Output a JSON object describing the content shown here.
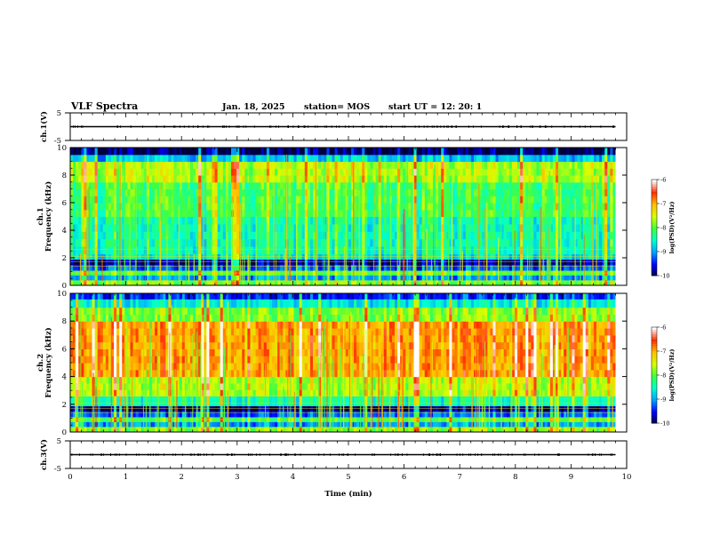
{
  "header": {
    "title": "VLF Spectra",
    "date": "Jan. 18, 2025",
    "station": "station= MOS",
    "start": "start  UT =   12: 20: 1"
  },
  "chart_data": [
    {
      "type": "line",
      "panel": "ch1-waveform",
      "ylabel": "ch.1(V)",
      "ylim": [
        -5,
        5
      ],
      "yticks": [
        "5",
        "-5"
      ],
      "xlim": [
        0,
        10
      ],
      "series": [
        {
          "x": [
            0,
            9.8
          ],
          "values": [
            0,
            0
          ]
        }
      ]
    },
    {
      "type": "heatmap",
      "panel": "ch1-spectrogram",
      "ylabel": "ch.1\nFrequency (kHz)",
      "xlim": [
        0,
        10
      ],
      "data_xmax": 9.8,
      "ylim": [
        0,
        10
      ],
      "yticks": [
        "0",
        "2",
        "4",
        "6",
        "8",
        "10"
      ],
      "bands": [
        {
          "f0": 0,
          "f1": 0.4,
          "level": 0.55
        },
        {
          "f0": 0.4,
          "f1": 0.75,
          "level": 0.25
        },
        {
          "f0": 0.75,
          "f1": 1.1,
          "level": 0.5
        },
        {
          "f0": 1.1,
          "f1": 1.5,
          "level": 0.2
        },
        {
          "f0": 1.5,
          "f1": 1.9,
          "level": 0.05
        },
        {
          "f0": 1.9,
          "f1": 2.3,
          "level": 0.35
        },
        {
          "f0": 2.3,
          "f1": 5.0,
          "level": 0.4
        },
        {
          "f0": 5.0,
          "f1": 7.5,
          "level": 0.48
        },
        {
          "f0": 7.5,
          "f1": 9.0,
          "level": 0.6
        },
        {
          "f0": 9.0,
          "f1": 9.5,
          "level": 0.3
        },
        {
          "f0": 9.5,
          "f1": 10,
          "level": 0.02
        }
      ],
      "colorbar": {
        "range": [
          -10,
          -6
        ],
        "ticks": [
          "-6",
          "-7",
          "-8",
          "-9",
          "-10"
        ],
        "label": "log(PSD)(V²/Hz)"
      }
    },
    {
      "type": "heatmap",
      "panel": "ch2-spectrogram",
      "ylabel": "ch.2\nFrequency (kHz)",
      "xlim": [
        0,
        10
      ],
      "data_xmax": 9.8,
      "ylim": [
        0,
        10
      ],
      "yticks": [
        "0",
        "2",
        "4",
        "6",
        "8",
        "10"
      ],
      "bands": [
        {
          "f0": 0,
          "f1": 0.4,
          "level": 0.55
        },
        {
          "f0": 0.4,
          "f1": 0.75,
          "level": 0.25
        },
        {
          "f0": 0.75,
          "f1": 1.1,
          "level": 0.5
        },
        {
          "f0": 1.1,
          "f1": 1.5,
          "level": 0.2
        },
        {
          "f0": 1.5,
          "f1": 1.9,
          "level": 0.05
        },
        {
          "f0": 1.9,
          "f1": 2.6,
          "level": 0.4
        },
        {
          "f0": 2.6,
          "f1": 4.0,
          "level": 0.6
        },
        {
          "f0": 4.0,
          "f1": 8.0,
          "level": 0.78
        },
        {
          "f0": 8.0,
          "f1": 9.0,
          "level": 0.55
        },
        {
          "f0": 9.0,
          "f1": 9.6,
          "level": 0.35
        },
        {
          "f0": 9.6,
          "f1": 10,
          "level": 0.15
        }
      ],
      "colorbar": {
        "range": [
          -10,
          -6
        ],
        "ticks": [
          "-6",
          "-7",
          "-8",
          "-9",
          "-10"
        ],
        "label": "log(PSD)(V²/Hz)"
      }
    },
    {
      "type": "line",
      "panel": "ch3-waveform",
      "ylabel": "ch.3(V)",
      "ylim": [
        -5,
        5
      ],
      "yticks": [
        "5",
        "-5"
      ],
      "xlim": [
        0,
        10
      ],
      "xlabel": "Time  (min)",
      "xticks": [
        "0",
        "1",
        "2",
        "3",
        "4",
        "5",
        "6",
        "7",
        "8",
        "9",
        "10"
      ],
      "series": [
        {
          "x": [
            0,
            9.8
          ],
          "values": [
            0,
            0
          ]
        }
      ]
    }
  ],
  "colors": {
    "colormap": [
      "#00003c",
      "#0000ff",
      "#00a0ff",
      "#00ffd0",
      "#40ff40",
      "#d8ff00",
      "#ffc000",
      "#ff3000",
      "#ffffff"
    ]
  }
}
